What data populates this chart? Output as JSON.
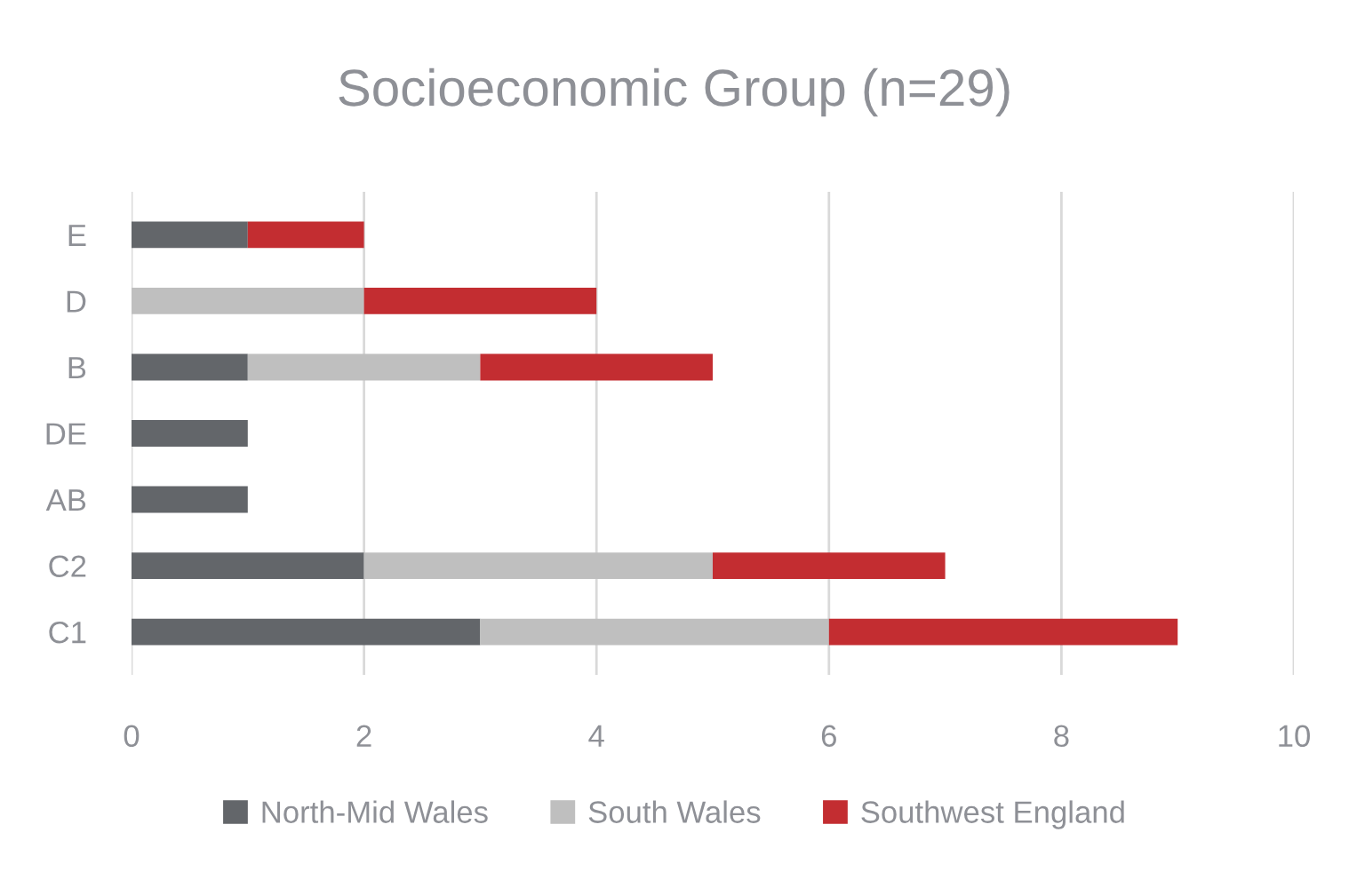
{
  "chart_data": {
    "type": "bar",
    "orientation": "horizontal",
    "stacked": true,
    "title": "Socioeconomic Group (n=29)",
    "categories": [
      "E",
      "D",
      "B",
      "DE",
      "AB",
      "C2",
      "C1"
    ],
    "series": [
      {
        "name": "North-Mid Wales",
        "color": "#63666a",
        "values": [
          1,
          0,
          1,
          1,
          1,
          2,
          3
        ]
      },
      {
        "name": "South Wales",
        "color": "#bfbfbf",
        "values": [
          0,
          2,
          2,
          0,
          0,
          3,
          3
        ]
      },
      {
        "name": "Southwest England",
        "color": "#c32d31",
        "values": [
          1,
          2,
          2,
          0,
          0,
          2,
          3
        ]
      }
    ],
    "xlim": [
      0,
      10
    ],
    "xticks": [
      0,
      2,
      4,
      6,
      8,
      10
    ],
    "grid": "x",
    "legend": "bottom"
  }
}
